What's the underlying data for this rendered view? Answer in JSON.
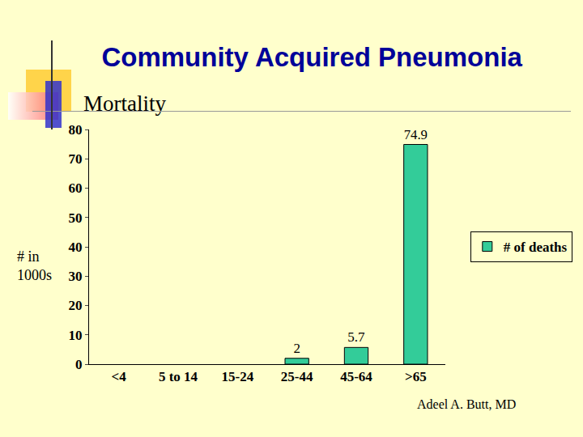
{
  "chart_data": {
    "type": "bar",
    "title": "Community Acquired Pneumonia",
    "subtitle": "Mortality",
    "y_label": "# in 1000s",
    "categories": [
      "<4",
      "5 to 14",
      "15-24",
      "25-44",
      "45-64",
      ">65"
    ],
    "series": [
      {
        "name": "# of deaths",
        "color": "#33cc99",
        "values": [
          null,
          null,
          null,
          2,
          5.7,
          74.9
        ]
      }
    ],
    "ylim": [
      0,
      80
    ],
    "yticks": [
      0,
      10,
      20,
      30,
      40,
      50,
      60,
      70,
      80
    ],
    "grid": false,
    "legend": "right",
    "data_labels": true,
    "annotations": [
      "Adeel A. Butt, MD"
    ]
  }
}
